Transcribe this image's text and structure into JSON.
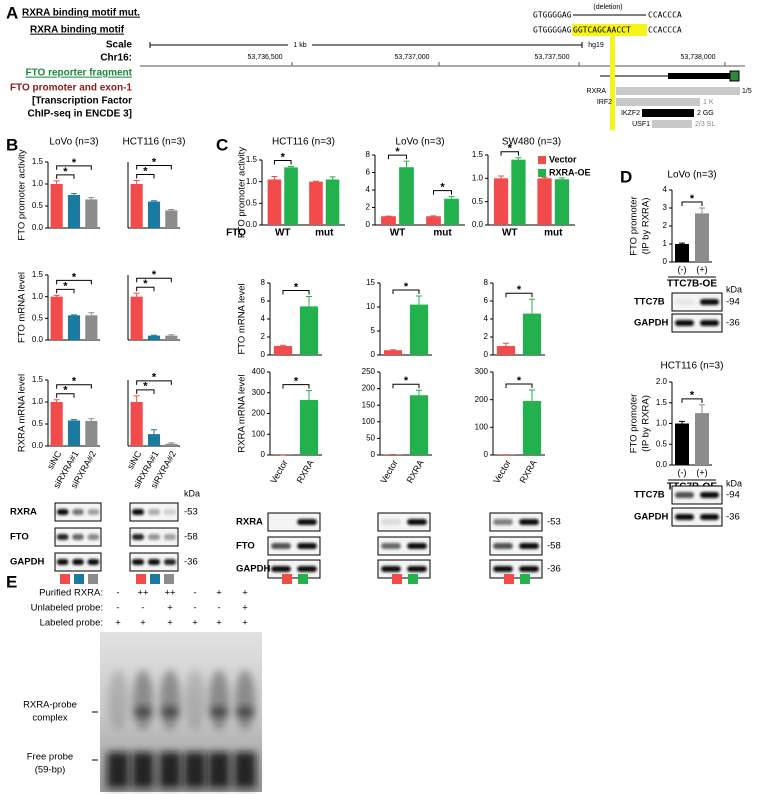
{
  "panel_labels": [
    "A",
    "B",
    "C",
    "D",
    "E"
  ],
  "panel_a": {
    "legend": [
      "RXRA binding motif mut.",
      "RXRA binding motif"
    ],
    "track_labels": [
      "Scale",
      "Chr16:",
      "FTO reporter fragment",
      "FTO promoter and exon-1",
      "[Transcription Factor",
      "ChIP-seq in ENCDE 3]"
    ],
    "scale": "1 kb",
    "assembly": "hg19",
    "coordinates": [
      "53,736,500",
      "53,737,000",
      "53,737,500",
      "53,738,000"
    ],
    "sequences": {
      "deletion_label": "(deletion)",
      "mut": [
        "GTGGGGAG",
        "CCACCCA"
      ],
      "wt": [
        "GTGGGGAG",
        "GGTCAGCAACCT",
        "CCACCCA"
      ]
    },
    "tf_tracks": [
      {
        "name": "RXRA",
        "score": "1/5"
      },
      {
        "name": "IRF2",
        "score": "1 K"
      },
      {
        "name": "IKZF2",
        "score": "2 GG"
      },
      {
        "name": "USF1",
        "score": "2/3 SL"
      }
    ]
  },
  "chart_data": [
    {
      "type": "bar",
      "title": "LoVo (n=3)",
      "ylabel": "FTO promoter activity",
      "values": [
        1.0,
        0.75,
        0.65
      ],
      "errors": [
        0.07,
        0.03,
        0.04
      ],
      "colors": [
        "#f24b4b",
        "#1a7aa0",
        "#8c8c8c"
      ],
      "ylim": [
        0,
        1.5
      ],
      "yticks": [
        {
          "value": 0,
          "label": "0.0"
        },
        {
          "value": 0.5,
          "label": "0.5"
        },
        {
          "value": 1,
          "label": "1.0"
        },
        {
          "value": 1.5,
          "label": "1.5"
        }
      ],
      "annotations": [
        "*",
        "*"
      ]
    },
    {
      "type": "bar",
      "title": "HCT116 (n=3)",
      "values": [
        1.0,
        0.6,
        0.4
      ],
      "errors": [
        0.08,
        0.02,
        0.02
      ],
      "colors": [
        "#f24b4b",
        "#1a7aa0",
        "#8c8c8c"
      ],
      "ylim": [
        0,
        1.5
      ],
      "annotations": [
        "*",
        "*"
      ]
    },
    {
      "type": "bar",
      "ylabel": "FTO mRNA level",
      "values": [
        1.0,
        0.57,
        0.57
      ],
      "errors": [
        0.03,
        0.01,
        0.06
      ],
      "colors": [
        "#f24b4b",
        "#1a7aa0",
        "#8c8c8c"
      ],
      "ylim": [
        0,
        1.5
      ],
      "yticks": [
        {
          "value": 0,
          "label": "0.0"
        },
        {
          "value": 0.5,
          "label": "0.5"
        },
        {
          "value": 1,
          "label": "1.0"
        },
        {
          "value": 1.5,
          "label": "1.5"
        }
      ],
      "annotations": [
        "*",
        "*"
      ]
    },
    {
      "type": "bar",
      "values": [
        1.0,
        0.1,
        0.1
      ],
      "errors": [
        0.08,
        0.01,
        0.02
      ],
      "colors": [
        "#f24b4b",
        "#1a7aa0",
        "#8c8c8c"
      ],
      "ylim": [
        0,
        1.5
      ],
      "annotations": [
        "*",
        "*"
      ]
    },
    {
      "type": "bar",
      "ylabel": "RXRA mRNA level",
      "categories": [
        "siNC",
        "siRXRA#1",
        "siRXRA#2"
      ],
      "values": [
        1.0,
        0.58,
        0.57
      ],
      "errors": [
        0.05,
        0.02,
        0.05
      ],
      "colors": [
        "#f24b4b",
        "#1a7aa0",
        "#8c8c8c"
      ],
      "ylim": [
        0,
        1.5
      ],
      "yticks": [
        {
          "value": 0,
          "label": "0.0"
        },
        {
          "value": 0.5,
          "label": "0.5"
        },
        {
          "value": 1,
          "label": "1.0"
        },
        {
          "value": 1.5,
          "label": "1.5"
        }
      ],
      "annotations": [
        "*",
        "*"
      ]
    },
    {
      "type": "bar",
      "categories": [
        "siNC",
        "siRXRA#1",
        "siRXRA#2"
      ],
      "values": [
        1.0,
        0.27,
        0.05
      ],
      "errors": [
        0.14,
        0.1,
        0.02
      ],
      "colors": [
        "#f24b4b",
        "#1a7aa0",
        "#8c8c8c"
      ],
      "ylim": [
        0,
        1.5
      ],
      "annotations": [
        "*",
        "*"
      ]
    },
    {
      "type": "bar",
      "title": "HCT116 (n=3)",
      "ylabel": "FTO promoter activity",
      "xlabel": "FTO",
      "categories": [
        "WT",
        "mut"
      ],
      "series": [
        {
          "color": "#f24b4b",
          "values": [
            1.05,
            1.0
          ],
          "errors": [
            0.07,
            0.01
          ]
        },
        {
          "color": "#22b14c",
          "values": [
            1.33,
            1.05
          ],
          "errors": [
            0.02,
            0.06
          ]
        }
      ],
      "ylim": [
        0,
        1.5
      ],
      "yticks": [
        {
          "value": 0,
          "label": "0.0"
        },
        {
          "value": 0.5,
          "label": "0.5"
        },
        {
          "value": 1,
          "label": "1.0"
        },
        {
          "value": 1.5,
          "label": "1.5"
        }
      ],
      "annotations": [
        "*"
      ]
    },
    {
      "type": "bar",
      "title": "LoVo (n=3)",
      "categories": [
        "WT",
        "mut"
      ],
      "series": [
        {
          "color": "#f24b4b",
          "values": [
            1.0,
            1.0
          ],
          "errors": [
            0.02,
            0.04
          ]
        },
        {
          "color": "#22b14c",
          "values": [
            6.6,
            3.0
          ],
          "errors": [
            0.7,
            0.25
          ]
        }
      ],
      "ylim": [
        0,
        8
      ],
      "yticks": [
        0,
        2,
        4,
        6,
        8
      ],
      "annotations": [
        "*",
        "*"
      ]
    },
    {
      "type": "bar",
      "title": "SW480 (n=3)",
      "categories": [
        "WT",
        "mut"
      ],
      "series": [
        {
          "name": "Vector",
          "color": "#f24b4b",
          "values": [
            1.0,
            1.0
          ],
          "errors": [
            0.05,
            0.02
          ]
        },
        {
          "name": "RXRA-OE",
          "color": "#22b14c",
          "values": [
            1.4,
            0.98
          ],
          "errors": [
            0.04,
            0.03
          ]
        }
      ],
      "ylim": [
        0,
        1.5
      ],
      "yticks": [
        {
          "value": 0,
          "label": "0.0"
        },
        {
          "value": 0.5,
          "label": "0.5"
        },
        {
          "value": 1,
          "label": "1.0"
        },
        {
          "value": 1.5,
          "label": "1.5"
        }
      ],
      "annotations": [
        "*"
      ]
    },
    {
      "type": "bar",
      "ylabel": "FTO mRNA level",
      "values": [
        1,
        5.4
      ],
      "errors": [
        0.08,
        1.1
      ],
      "colors": [
        "#f24b4b",
        "#22b14c"
      ],
      "ylim": [
        0,
        8
      ],
      "yticks": [
        0,
        2,
        4,
        6,
        8
      ],
      "annotations": [
        "*"
      ]
    },
    {
      "type": "bar",
      "values": [
        1,
        10.5
      ],
      "errors": [
        0.1,
        1.8
      ],
      "colors": [
        "#f24b4b",
        "#22b14c"
      ],
      "ylim": [
        0,
        15
      ],
      "yticks": [
        0,
        5,
        10,
        15
      ],
      "annotations": [
        "*"
      ]
    },
    {
      "type": "bar",
      "values": [
        1,
        4.6
      ],
      "errors": [
        0.3,
        1.6
      ],
      "colors": [
        "#f24b4b",
        "#22b14c"
      ],
      "ylim": [
        0,
        8
      ],
      "yticks": [
        0,
        2,
        4,
        6,
        8
      ],
      "annotations": [
        "*"
      ]
    },
    {
      "type": "bar",
      "ylabel": "RXRA mRNA level",
      "categories": [
        "Vector",
        "RXRA"
      ],
      "values": [
        1,
        265
      ],
      "errors": [
        0.5,
        45
      ],
      "colors": [
        "#f24b4b",
        "#22b14c"
      ],
      "ylim": [
        0,
        400
      ],
      "yticks": [
        0,
        100,
        200,
        300,
        400
      ],
      "annotations": [
        "*"
      ]
    },
    {
      "type": "bar",
      "categories": [
        "Vector",
        "RXRA"
      ],
      "values": [
        1,
        180
      ],
      "errors": [
        0.5,
        15
      ],
      "colors": [
        "#f24b4b",
        "#22b14c"
      ],
      "ylim": [
        0,
        250
      ],
      "yticks": [
        0,
        50,
        100,
        150,
        200,
        250
      ],
      "annotations": [
        "*"
      ]
    },
    {
      "type": "bar",
      "categories": [
        "Vector",
        "RXRA"
      ],
      "values": [
        1,
        195
      ],
      "errors": [
        0.5,
        40
      ],
      "colors": [
        "#f24b4b",
        "#22b14c"
      ],
      "ylim": [
        0,
        300
      ],
      "yticks": [
        0,
        100,
        200,
        300
      ],
      "annotations": [
        "*"
      ]
    },
    {
      "type": "bar",
      "title": "LoVo (n=3)",
      "ylabel": [
        "FTO promoter",
        "(IP by RXRA)"
      ],
      "categories": [
        "(-)",
        "(+)"
      ],
      "xlabel": "TTC7B-OE",
      "values": [
        1.0,
        2.7
      ],
      "errors": [
        0.05,
        0.3
      ],
      "colors": [
        "#000000",
        "#8c8c8c"
      ],
      "ylim": [
        0,
        4
      ],
      "yticks": [
        0,
        1,
        2,
        3,
        4
      ],
      "annotations": [
        "*"
      ]
    },
    {
      "type": "bar",
      "title": "HCT116 (n=3)",
      "ylabel": [
        "FTO promoter",
        "(IP by RXRA)"
      ],
      "categories": [
        "(-)",
        "(+)"
      ],
      "xlabel": "TTC7B-OE",
      "values": [
        1.0,
        1.25
      ],
      "errors": [
        0.05,
        0.2
      ],
      "colors": [
        "#000000",
        "#8c8c8c"
      ],
      "ylim": [
        0,
        2
      ],
      "yticks": [
        {
          "value": 0,
          "label": "0.0"
        },
        {
          "value": 0.5,
          "label": "0.5"
        },
        {
          "value": 1,
          "label": "1.0"
        },
        {
          "value": 1.5,
          "label": "1.5"
        },
        {
          "value": 2,
          "label": "2.0"
        }
      ],
      "annotations": [
        "*"
      ]
    }
  ],
  "blots": [
    {
      "rows": [
        "RXRA",
        "FTO",
        "GAPDH"
      ],
      "unit": "kDa",
      "sizes": [
        "-53",
        "-58",
        "-36"
      ]
    },
    {
      "rows": [
        "RXRA",
        "FTO",
        "GAPDH"
      ],
      "sizes": [
        "-53",
        "-58",
        "-36"
      ]
    },
    {
      "rows": [
        "TTC7B",
        "GAPDH"
      ],
      "unit": "kDa",
      "sizes": [
        "-94",
        "-36"
      ]
    },
    {
      "rows": [
        "TTC7B",
        "GAPDH"
      ],
      "unit": "kDa",
      "sizes": [
        "-94",
        "-36"
      ]
    }
  ],
  "emsa": {
    "rows": [
      {
        "label": "Purified RXRA:",
        "lanes": [
          "-",
          "++",
          "++",
          "-",
          "+",
          "+"
        ]
      },
      {
        "label": "Unlabeled probe:",
        "lanes": [
          "-",
          "-",
          "+",
          "-",
          "-",
          "+"
        ]
      },
      {
        "label": "Labeled probe:",
        "lanes": [
          "+",
          "+",
          "+",
          "+",
          "+",
          "+"
        ]
      }
    ],
    "complex_label": [
      "RXRA-probe",
      "complex"
    ],
    "free_label": [
      "Free probe",
      "(59-bp)"
    ]
  }
}
